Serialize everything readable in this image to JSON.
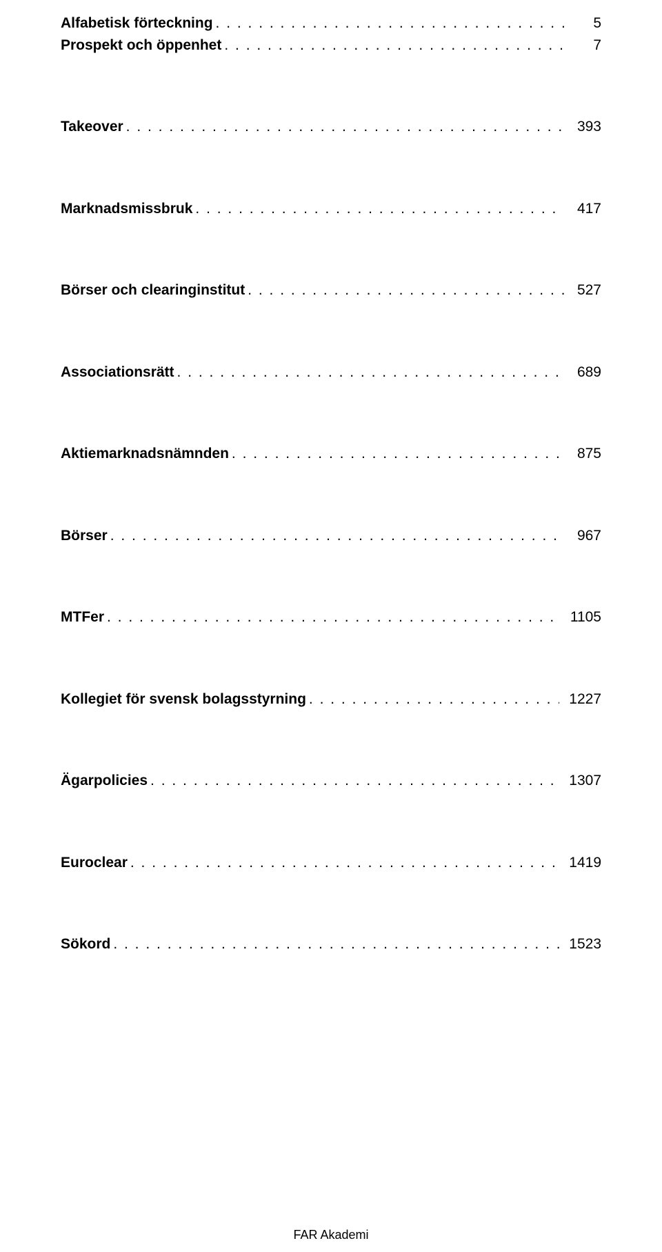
{
  "document": {
    "font_family": "Arial, Helvetica, sans-serif",
    "background_color": "#ffffff",
    "text_color": "#000000",
    "title_fontsize": 21,
    "title_fontweight": "bold",
    "page_fontsize": 21,
    "page_fontweight": "normal",
    "leader_letter_spacing": 2,
    "footer_fontsize": 18
  },
  "toc": {
    "groups": [
      {
        "gap_before": 0,
        "entries": [
          {
            "title": "Alfabetisk förteckning",
            "page": "5"
          },
          {
            "title": "Prospekt och öppenhet",
            "page": "7"
          }
        ]
      },
      {
        "gap_before": 87,
        "entries": [
          {
            "title": "Takeover",
            "page": "393"
          }
        ]
      },
      {
        "gap_before": 87,
        "entries": [
          {
            "title": "Marknadsmissbruk",
            "page": "417"
          }
        ]
      },
      {
        "gap_before": 87,
        "entries": [
          {
            "title": "Börser och clearinginstitut",
            "page": "527"
          }
        ]
      },
      {
        "gap_before": 87,
        "entries": [
          {
            "title": "Associationsrätt",
            "page": "689"
          }
        ]
      },
      {
        "gap_before": 87,
        "entries": [
          {
            "title": "Aktiemarknadsnämnden",
            "page": "875"
          }
        ]
      },
      {
        "gap_before": 87,
        "entries": [
          {
            "title": "Börser",
            "page": "967"
          }
        ]
      },
      {
        "gap_before": 87,
        "entries": [
          {
            "title": "MTFer",
            "page": "1105"
          }
        ]
      },
      {
        "gap_before": 87,
        "entries": [
          {
            "title": "Kollegiet för svensk bolagsstyrning",
            "page": "1227"
          }
        ]
      },
      {
        "gap_before": 87,
        "entries": [
          {
            "title": "Ägarpolicies",
            "page": "1307"
          }
        ]
      },
      {
        "gap_before": 87,
        "entries": [
          {
            "title": "Euroclear",
            "page": "1419"
          }
        ]
      },
      {
        "gap_before": 87,
        "entries": [
          {
            "title": "Sökord",
            "page": "1523"
          }
        ]
      }
    ]
  },
  "footer": {
    "text": "FAR Akademi"
  }
}
